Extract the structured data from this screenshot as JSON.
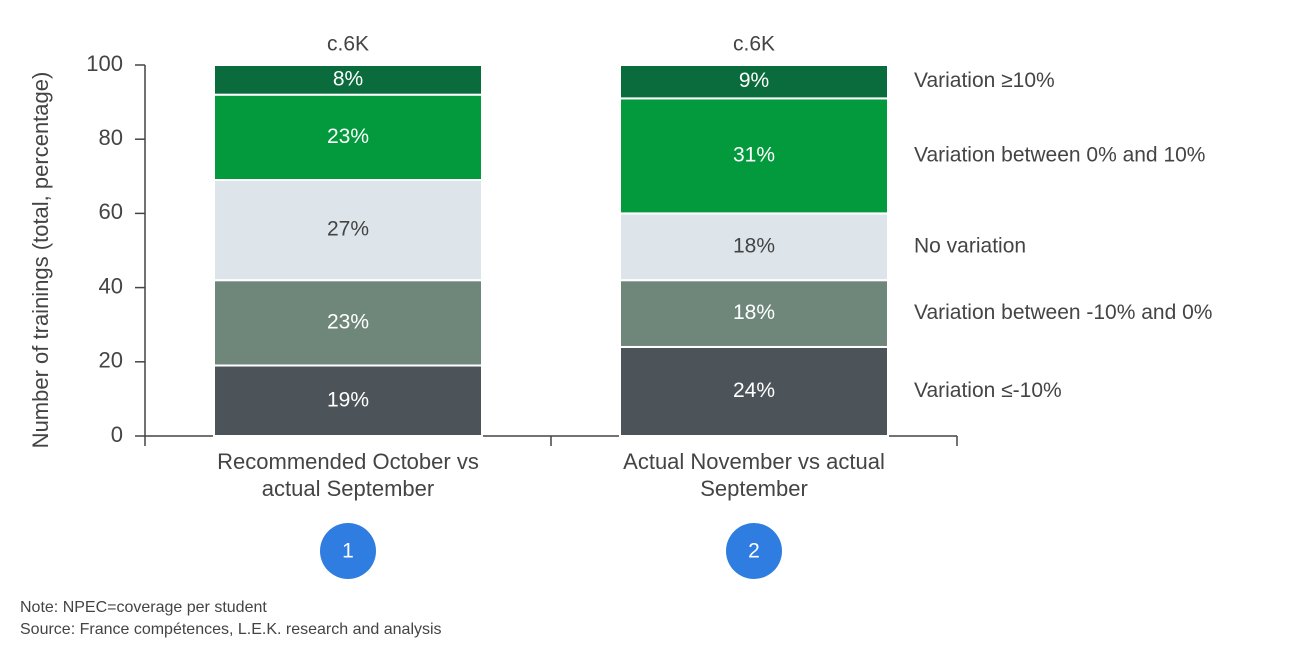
{
  "chart_data": {
    "type": "stacked_bar",
    "y_label": "Number of trainings (total, percentage)",
    "categories": [
      "Recommended October vs actual September",
      "Actual November vs actual September"
    ],
    "total_labels": [
      "c.6K",
      "c.6K"
    ],
    "markers": [
      "1",
      "2"
    ],
    "series": [
      {
        "name": "Variation ≤-10%",
        "color": "#4d5459",
        "values": [
          19,
          24
        ],
        "value_labels": [
          "19%",
          "24%"
        ]
      },
      {
        "name": "Variation between -10% and 0%",
        "color": "#6f877b",
        "values": [
          23,
          18
        ],
        "value_labels": [
          "23%",
          "18%"
        ]
      },
      {
        "name": "No variation",
        "color": "#dde5ea",
        "values": [
          27,
          18
        ],
        "value_labels": [
          "27%",
          "18%"
        ]
      },
      {
        "name": "Variation between 0% and 10%",
        "color": "#029a3d",
        "values": [
          23,
          31
        ],
        "value_labels": [
          "23%",
          "31%"
        ]
      },
      {
        "name": "Variation ≥10%",
        "color": "#0a6b3d",
        "values": [
          8,
          9
        ],
        "value_labels": [
          "8%",
          "9%"
        ]
      }
    ],
    "ylim": [
      0,
      100
    ],
    "yticks": [
      0,
      20,
      40,
      60,
      80,
      100
    ],
    "note": "Note: NPEC=coverage per student",
    "source": "Source: France compétences, L.E.K. research and analysis"
  }
}
